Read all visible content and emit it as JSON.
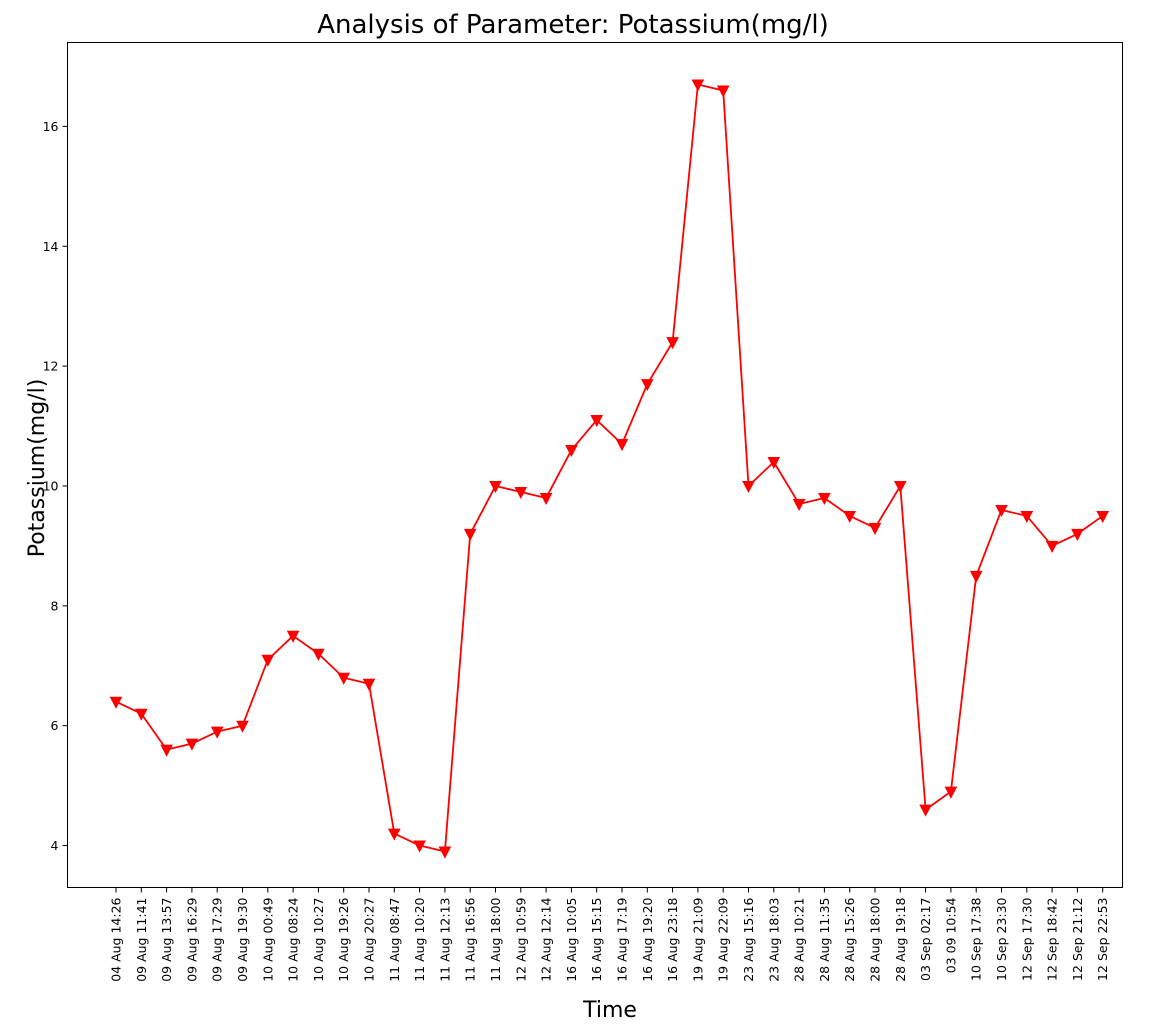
{
  "chart_data": {
    "type": "line",
    "title": "Analysis of Parameter: Potassium(mg/l)",
    "xlabel": "Time",
    "ylabel": "Potassium(mg/l)",
    "ylim": [
      3.3,
      17.4
    ],
    "yticks": [
      4,
      6,
      8,
      10,
      12,
      14,
      16
    ],
    "grid": false,
    "marker": "triangle-down",
    "color": "#ff0000",
    "categories": [
      "04 Aug 14:26",
      "09 Aug 11:41",
      "09 Aug 13:57",
      "09 Aug 16:29",
      "09 Aug 17:29",
      "09 Aug 19:30",
      "10 Aug 00:49",
      "10 Aug 08:24",
      "10 Aug 10:27",
      "10 Aug 19:26",
      "10 Aug 20:27",
      "11 Aug 08:47",
      "11 Aug 10:20",
      "11 Aug 12:13",
      "11 Aug 16:56",
      "11 Aug 18:00",
      "12 Aug 10:59",
      "12 Aug 12:14",
      "16 Aug 10:05",
      "16 Aug 15:15",
      "16 Aug 17:19",
      "16 Aug 19:20",
      "16 Aug 23:18",
      "19 Aug 21:09",
      "19 Aug 22:09",
      "23 Aug 15:16",
      "23 Aug 18:03",
      "28 Aug 10:21",
      "28 Aug 11:35",
      "28 Aug 15:26",
      "28 Aug 18:00",
      "28 Aug 19:18",
      "03 Sep 02:17",
      "03 09 10:54",
      "10 Sep 17:38",
      "10 Sep 23:30",
      "12 Sep 17:30",
      "12 Sep 18:42",
      "12 Sep 21:12",
      "12 Sep 22:53"
    ],
    "values": [
      6.4,
      6.2,
      5.6,
      5.7,
      5.9,
      6.0,
      7.1,
      7.5,
      7.2,
      6.8,
      6.7,
      4.2,
      4.0,
      3.9,
      9.2,
      10.0,
      9.9,
      9.8,
      10.6,
      11.1,
      10.7,
      11.7,
      12.4,
      16.7,
      16.6,
      10.0,
      10.4,
      9.7,
      9.8,
      9.5,
      9.3,
      10.0,
      4.6,
      4.9,
      8.5,
      9.6,
      9.5,
      9.0,
      9.2,
      9.5
    ]
  }
}
